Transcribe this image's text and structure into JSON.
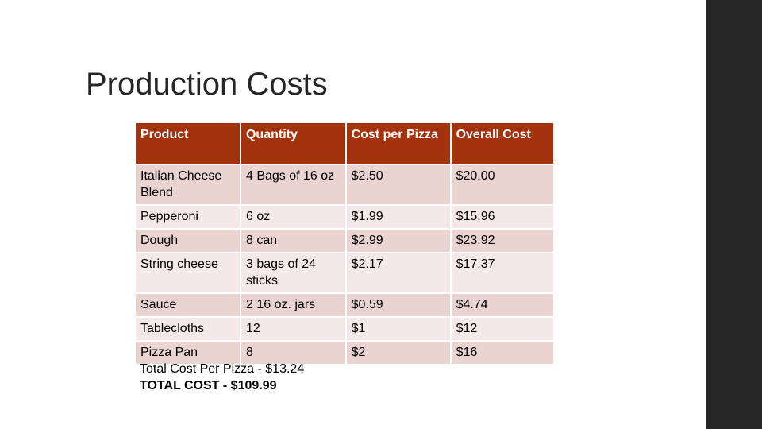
{
  "slide": {
    "title": "Production Costs",
    "colors": {
      "header_bg": "#a3320f",
      "row_odd_bg": "#e9d4d2",
      "row_even_bg": "#f4e9e8",
      "side_bar": "#262626"
    }
  },
  "table": {
    "headers": [
      "Product",
      "Quantity",
      "Cost per Pizza",
      "Overall Cost"
    ],
    "rows": [
      [
        "Italian Cheese Blend",
        "4 Bags of 16 oz",
        "$2.50",
        "$20.00"
      ],
      [
        "Pepperoni",
        "6 oz",
        "$1.99",
        "$15.96"
      ],
      [
        "Dough",
        "8 can",
        "$2.99",
        "$23.92"
      ],
      [
        "String cheese",
        "3 bags of 24 sticks",
        "$2.17",
        "$17.37"
      ],
      [
        "Sauce",
        "2 16 oz. jars",
        "$0.59",
        "$4.74"
      ],
      [
        "Tablecloths",
        "12",
        "$1",
        "$12"
      ],
      [
        "Pizza Pan",
        "8",
        "$2",
        "$16"
      ]
    ]
  },
  "totals": {
    "per_pizza": "Total Cost Per Pizza - $13.24",
    "total": "TOTAL COST - $109.99"
  }
}
